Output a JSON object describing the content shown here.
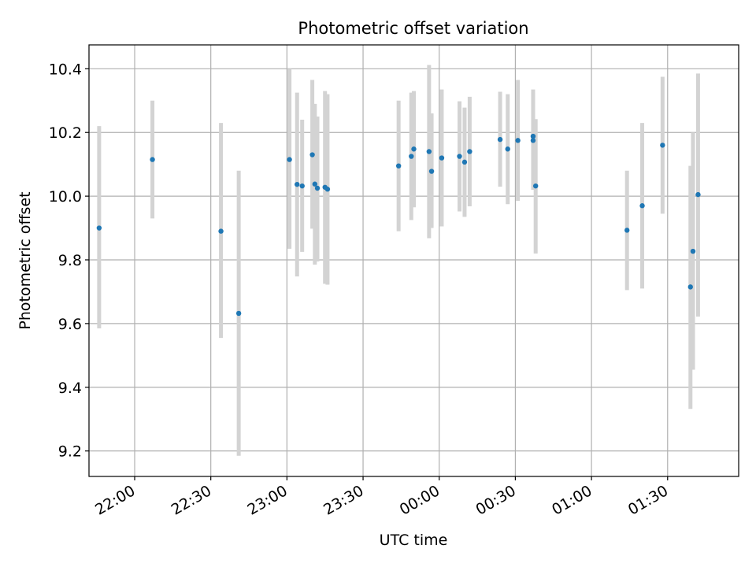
{
  "chart_data": {
    "type": "scatter",
    "title": "Photometric offset variation",
    "xlabel": "UTC time",
    "ylabel": "Photometric offset",
    "grid": true,
    "x_axis_kind": "time",
    "xlim": [
      "21:42",
      "01:58"
    ],
    "ylim": [
      9.12,
      10.475
    ],
    "x_ticks": [
      {
        "time": "22:00",
        "label": "22:00"
      },
      {
        "time": "22:30",
        "label": "22:30"
      },
      {
        "time": "23:00",
        "label": "23:00"
      },
      {
        "time": "23:30",
        "label": "23:30"
      },
      {
        "time": "00:00",
        "label": "00:00"
      },
      {
        "time": "00:30",
        "label": "00:30"
      },
      {
        "time": "01:00",
        "label": "01:00"
      },
      {
        "time": "01:30",
        "label": "01:30"
      }
    ],
    "y_ticks": [
      {
        "value": 9.2,
        "label": "9.2"
      },
      {
        "value": 9.4,
        "label": "9.4"
      },
      {
        "value": 9.6,
        "label": "9.6"
      },
      {
        "value": 9.8,
        "label": "9.8"
      },
      {
        "value": 10.0,
        "label": "10.0"
      },
      {
        "value": 10.2,
        "label": "10.2"
      },
      {
        "value": 10.4,
        "label": "10.4"
      }
    ],
    "colors": {
      "point": "#1f77b4",
      "errorbar": "#d3d3d3",
      "grid": "#b0b0b0"
    },
    "points": [
      {
        "t": "21:46",
        "y": 9.9,
        "ylow": 9.585,
        "yhigh": 10.22
      },
      {
        "t": "22:07",
        "y": 10.115,
        "ylow": 9.93,
        "yhigh": 10.3
      },
      {
        "t": "22:34",
        "y": 9.89,
        "ylow": 9.555,
        "yhigh": 10.23
      },
      {
        "t": "22:41",
        "y": 9.632,
        "ylow": 9.185,
        "yhigh": 10.08
      },
      {
        "t": "23:01",
        "y": 10.115,
        "ylow": 9.835,
        "yhigh": 10.4
      },
      {
        "t": "23:04",
        "y": 10.037,
        "ylow": 9.748,
        "yhigh": 10.325
      },
      {
        "t": "23:06",
        "y": 10.032,
        "ylow": 9.825,
        "yhigh": 10.24
      },
      {
        "t": "23:10",
        "y": 10.13,
        "ylow": 9.898,
        "yhigh": 10.365
      },
      {
        "t": "23:11",
        "y": 10.038,
        "ylow": 9.785,
        "yhigh": 10.29
      },
      {
        "t": "23:12",
        "y": 10.025,
        "ylow": 9.795,
        "yhigh": 10.25
      },
      {
        "t": "23:15",
        "y": 10.028,
        "ylow": 9.725,
        "yhigh": 10.33
      },
      {
        "t": "23:16",
        "y": 10.022,
        "ylow": 9.722,
        "yhigh": 10.32
      },
      {
        "t": "23:44",
        "y": 10.095,
        "ylow": 9.89,
        "yhigh": 10.3
      },
      {
        "t": "23:49",
        "y": 10.125,
        "ylow": 9.925,
        "yhigh": 10.325
      },
      {
        "t": "23:50",
        "y": 10.148,
        "ylow": 9.965,
        "yhigh": 10.33
      },
      {
        "t": "23:56",
        "y": 10.14,
        "ylow": 9.868,
        "yhigh": 10.412
      },
      {
        "t": "23:57",
        "y": 10.078,
        "ylow": 9.9,
        "yhigh": 10.26
      },
      {
        "t": "00:01",
        "y": 10.12,
        "ylow": 9.905,
        "yhigh": 10.335
      },
      {
        "t": "00:08",
        "y": 10.125,
        "ylow": 9.952,
        "yhigh": 10.298
      },
      {
        "t": "00:10",
        "y": 10.107,
        "ylow": 9.935,
        "yhigh": 10.278
      },
      {
        "t": "00:12",
        "y": 10.14,
        "ylow": 9.968,
        "yhigh": 10.312
      },
      {
        "t": "00:24",
        "y": 10.178,
        "ylow": 10.03,
        "yhigh": 10.328
      },
      {
        "t": "00:27",
        "y": 10.148,
        "ylow": 9.975,
        "yhigh": 10.32
      },
      {
        "t": "00:31",
        "y": 10.175,
        "ylow": 9.985,
        "yhigh": 10.365
      },
      {
        "t": "00:37",
        "y": 10.188,
        "ylow": 10.04,
        "yhigh": 10.335
      },
      {
        "t": "00:37",
        "y": 10.175,
        "ylow": 10.02,
        "yhigh": 10.325
      },
      {
        "t": "00:38",
        "y": 10.032,
        "ylow": 9.82,
        "yhigh": 10.242
      },
      {
        "t": "01:14",
        "y": 9.893,
        "ylow": 9.705,
        "yhigh": 10.08
      },
      {
        "t": "01:20",
        "y": 9.97,
        "ylow": 9.71,
        "yhigh": 10.23
      },
      {
        "t": "01:28",
        "y": 10.16,
        "ylow": 9.945,
        "yhigh": 10.375
      },
      {
        "t": "01:39",
        "y": 9.715,
        "ylow": 9.332,
        "yhigh": 10.095
      },
      {
        "t": "01:40",
        "y": 9.827,
        "ylow": 9.455,
        "yhigh": 10.2
      },
      {
        "t": "01:42",
        "y": 10.005,
        "ylow": 9.622,
        "yhigh": 10.385
      }
    ]
  }
}
